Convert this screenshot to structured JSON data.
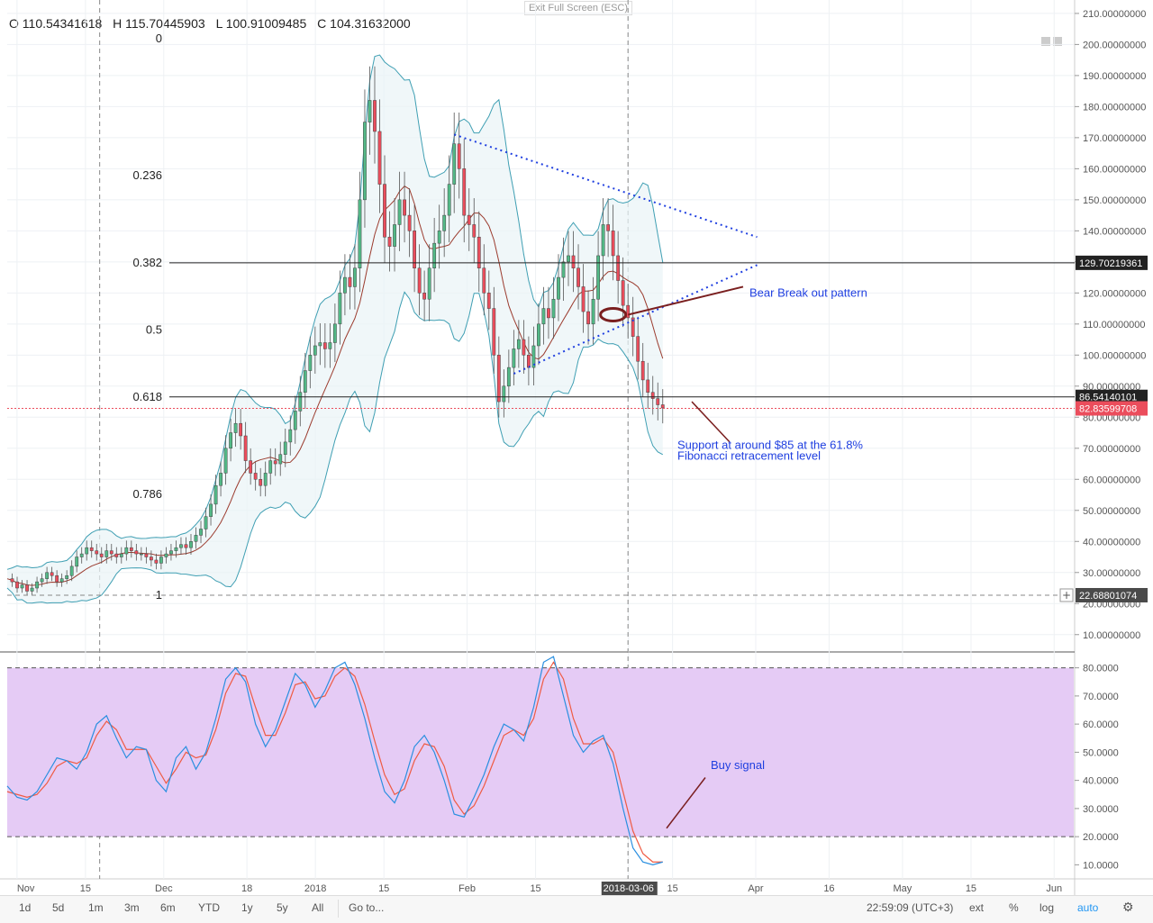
{
  "ui": {
    "ohlc": {
      "open": "O 110.54341618",
      "high": "H 115.70445903",
      "low": "L 100.91009485",
      "close": "C 104.31632000"
    },
    "exit_fullscreen": "Exit Full Screen (ESC)",
    "toolbar": {
      "ranges": [
        "1d",
        "5d",
        "1m",
        "3m",
        "6m",
        "YTD",
        "1y",
        "5y",
        "All"
      ],
      "goto": "Go to...",
      "time": "22:59:09 (UTC+3)",
      "ext": "ext",
      "pct": "%",
      "log": "log",
      "auto": "auto"
    },
    "colors": {
      "up": "#53b987",
      "down": "#eb4d5c",
      "bb": "#3f9fb3",
      "ma": "#9b3b2e",
      "k": "#2a8fe0",
      "d": "#ef5b43",
      "stoch_bg": "#e5cbf5",
      "trend": "#1f3fe0",
      "arrow": "#7a1f1f"
    }
  },
  "chart_data": {
    "type": "candlestick",
    "price_axis": {
      "ylim": [
        5,
        212
      ],
      "ticks": [
        10,
        20,
        30,
        40,
        50,
        60,
        70,
        80,
        90,
        100,
        110,
        120,
        130,
        140,
        150,
        160,
        170,
        180,
        190,
        200,
        210
      ],
      "labels": [
        "10.00000000",
        "20.00000000",
        "30.00000000",
        "40.00000000",
        "50.00000000",
        "60.00000000",
        "70.00000000",
        "80.00000000",
        "90.00000000",
        "100.00000000",
        "110.00000000",
        "120.00000000",
        "130.00000000",
        "140.00000000",
        "150.00000000",
        "160.00000000",
        "170.00000000",
        "180.00000000",
        "190.00000000",
        "200.00000000",
        "210.00000000"
      ]
    },
    "x_axis": {
      "labels": [
        "Nov",
        "15",
        "Dec",
        "18",
        "2018",
        "15",
        "Feb",
        "15",
        "2018-03-06",
        "15",
        "Apr",
        "16",
        "May",
        "15",
        "Jun"
      ],
      "first_day": "2017-10-30",
      "last_day": "2018-06-05",
      "label_days": [
        "2017-11-01",
        "2017-11-15",
        "2017-12-01",
        "2017-12-18",
        "2018-01-01",
        "2018-01-15",
        "2018-02-01",
        "2018-02-15",
        "2018-03-06",
        "2018-03-15",
        "2018-04-01",
        "2018-04-16",
        "2018-05-01",
        "2018-05-15",
        "2018-06-01"
      ]
    },
    "fib_levels": [
      {
        "label": "0",
        "value": 201.9
      },
      {
        "label": "0.236",
        "value": 157.8
      },
      {
        "label": "0.382",
        "value": 129.7
      },
      {
        "label": "0.5",
        "value": 108.0
      },
      {
        "label": "0.618",
        "value": 86.5
      },
      {
        "label": "0.786",
        "value": 55.2
      },
      {
        "label": "1",
        "value": 22.7
      }
    ],
    "hlines": [
      {
        "value": 129.70219361,
        "label": "129.70219361"
      },
      {
        "value": 86.54140101,
        "label": "86.54140101"
      }
    ],
    "last_price": {
      "value": 82.83599708,
      "label": "82.83599708"
    },
    "crosshair": {
      "value": 22.68801074,
      "label": "22.68801074"
    },
    "close_series": [
      28,
      27,
      25,
      26,
      24,
      25,
      27,
      28,
      30,
      29,
      27,
      28,
      29,
      32,
      35,
      36,
      38,
      37,
      36,
      35,
      37,
      36,
      35,
      36,
      38,
      37,
      36,
      36,
      35,
      34,
      33,
      35,
      36,
      37,
      38,
      39,
      38,
      40,
      42,
      44,
      48,
      52,
      58,
      62,
      70,
      75,
      78,
      74,
      66,
      62,
      60,
      58,
      62,
      66,
      65,
      68,
      72,
      76,
      82,
      88,
      95,
      100,
      103,
      104,
      102,
      104,
      110,
      120,
      125,
      122,
      128,
      150,
      175,
      182,
      172,
      155,
      138,
      135,
      142,
      150,
      145,
      140,
      128,
      120,
      118,
      128,
      136,
      140,
      145,
      155,
      168,
      160,
      145,
      142,
      138,
      128,
      120,
      115,
      100,
      85,
      90,
      96,
      102,
      105,
      100,
      96,
      103,
      110,
      115,
      112,
      118,
      125,
      130,
      132,
      128,
      122,
      114,
      110,
      118,
      132,
      142,
      140,
      132,
      124,
      116,
      112,
      106,
      98,
      92,
      88,
      86,
      84,
      83
    ],
    "bollinger": {
      "upper_start": 31,
      "upper_peak": 175,
      "upper_end": 146,
      "lower_min": 17,
      "lower_end": 75
    },
    "annotations": [
      {
        "text": "Bear Break out pattern"
      },
      {
        "text": "Support at around $85 at the 61.8%"
      },
      {
        "text": "Fibonacci retracement level"
      }
    ],
    "stochastic": {
      "ylim": [
        5,
        85
      ],
      "ticks": [
        10,
        20,
        30,
        40,
        50,
        60,
        70,
        80
      ],
      "labels": [
        "10.0000",
        "20.0000",
        "30.0000",
        "40.0000",
        "50.0000",
        "60.0000",
        "70.0000",
        "80.0000"
      ],
      "band": [
        20,
        80
      ],
      "k": [
        38,
        34,
        33,
        36,
        42,
        48,
        47,
        44,
        50,
        60,
        63,
        55,
        48,
        52,
        51,
        40,
        36,
        48,
        52,
        44,
        50,
        62,
        76,
        80,
        75,
        60,
        52,
        58,
        68,
        78,
        74,
        66,
        72,
        80,
        82,
        74,
        62,
        48,
        36,
        32,
        40,
        52,
        56,
        50,
        40,
        28,
        27,
        34,
        42,
        52,
        60,
        58,
        54,
        66,
        82,
        84,
        70,
        56,
        50,
        54,
        56,
        46,
        30,
        16,
        11,
        10,
        11
      ],
      "d": [
        36,
        35,
        34,
        35,
        39,
        45,
        47,
        46,
        48,
        56,
        61,
        58,
        51,
        51,
        51,
        45,
        39,
        44,
        50,
        48,
        49,
        58,
        71,
        78,
        77,
        66,
        56,
        56,
        64,
        74,
        75,
        69,
        70,
        77,
        80,
        77,
        67,
        54,
        42,
        35,
        37,
        47,
        53,
        52,
        45,
        33,
        28,
        31,
        38,
        47,
        56,
        58,
        56,
        62,
        76,
        82,
        76,
        62,
        53,
        53,
        55,
        50,
        36,
        22,
        14,
        11,
        11
      ],
      "label": "Buy signal"
    }
  }
}
